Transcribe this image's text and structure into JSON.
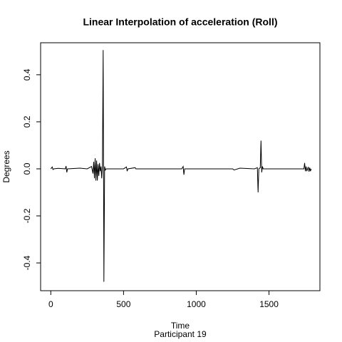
{
  "chart_data": {
    "type": "line",
    "title": "Linear Interpolation of acceleration (Roll)",
    "x_label": "Time",
    "subtitle": "Participant  19",
    "y_label": "Degrees",
    "x": [
      0,
      10,
      15,
      20,
      50,
      100,
      105,
      110,
      115,
      200,
      250,
      280,
      290,
      295,
      300,
      305,
      310,
      315,
      320,
      325,
      330,
      335,
      340,
      345,
      350,
      355,
      360,
      365,
      370,
      375,
      380,
      500,
      520,
      525,
      530,
      580,
      585,
      900,
      910,
      915,
      920,
      1250,
      1260,
      1300,
      1400,
      1420,
      1425,
      1430,
      1440,
      1445,
      1450,
      1455,
      1460,
      1560,
      1740,
      1745,
      1750,
      1755,
      1760,
      1770,
      1775,
      1780,
      1785,
      1790
    ],
    "series": [
      {
        "name": "acceleration",
        "color": "#000000",
        "values": [
          0,
          0.008,
          -0.003,
          0,
          0.002,
          0,
          0.012,
          -0.015,
          0,
          0.003,
          0,
          0.01,
          -0.02,
          0.03,
          -0.04,
          0.045,
          -0.05,
          0.035,
          -0.05,
          0.02,
          -0.03,
          0.025,
          -0.01,
          0.01,
          -0.04,
          0.015,
          0.505,
          -0.48,
          0.01,
          -0.005,
          0,
          0,
          0.008,
          -0.01,
          0,
          0.005,
          0,
          0,
          0.01,
          -0.025,
          0,
          0,
          -0.005,
          0.003,
          0,
          0.005,
          -0.1,
          0,
          0.005,
          0.12,
          -0.015,
          0.01,
          0,
          0,
          0,
          0.025,
          -0.01,
          0.01,
          -0.01,
          0.008,
          -0.012,
          0.005,
          -0.01,
          0
        ]
      }
    ],
    "xlim": [
      -70,
      1850
    ],
    "ylim": [
      -0.518,
      0.536
    ],
    "xticks": [
      0,
      500,
      1000,
      1500
    ],
    "yticks": [
      -0.4,
      -0.2,
      {
        "value": 0,
        "label": "0.0"
      },
      0.2,
      0.4
    ]
  }
}
